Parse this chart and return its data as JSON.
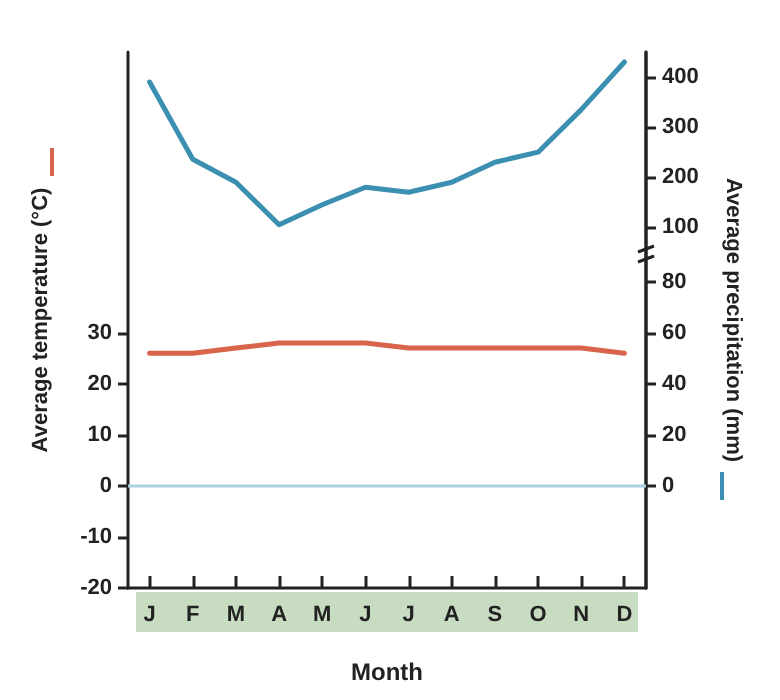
{
  "chart_data": {
    "type": "line",
    "xlabel": "Month",
    "ylabel": "Average temperature (°C)",
    "y2label": "Average precipitation (mm)",
    "categories": [
      "J",
      "F",
      "M",
      "A",
      "M",
      "J",
      "J",
      "A",
      "S",
      "O",
      "N",
      "D"
    ],
    "series": [
      {
        "color": "#d9644c",
        "values": [
          26,
          26,
          27,
          28,
          28,
          28,
          27,
          27,
          27,
          27,
          27,
          26
        ]
      },
      {
        "color": "#3b8fb0",
        "axis": "y3",
        "values": [
          390,
          236,
          190,
          105,
          145,
          180,
          170,
          190,
          230,
          250,
          335,
          430
        ]
      }
    ],
    "ylim": [
      -20,
      85
    ],
    "yticks": [
      -20,
      -10,
      0,
      10,
      20,
      30
    ],
    "y2lim": [
      -40,
      170
    ],
    "y2ticks": [
      0,
      20,
      40,
      60,
      80
    ],
    "y3lim": [
      -620,
      450
    ],
    "y3ticks": [
      100,
      200,
      300,
      400
    ],
    "ref_lines": [
      {
        "axis": "y",
        "value": 0,
        "color": "#a9d2e3"
      }
    ],
    "grid": false,
    "marker": "none"
  }
}
